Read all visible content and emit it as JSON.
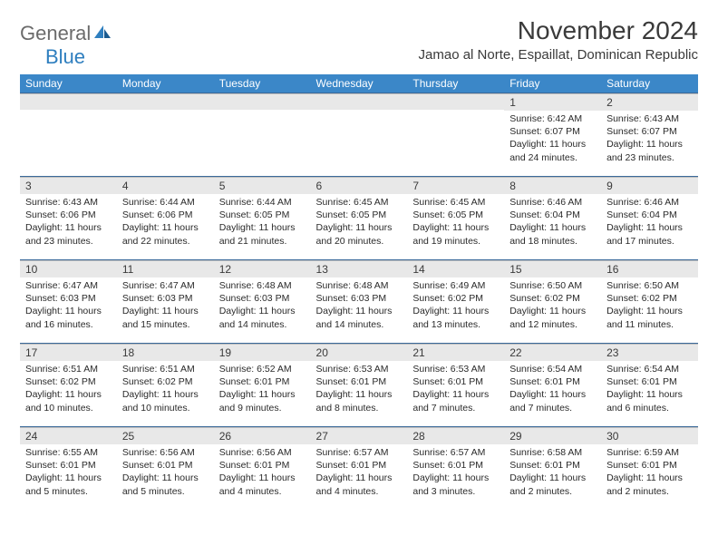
{
  "logo": {
    "text_general": "General",
    "text_blue": "Blue"
  },
  "header": {
    "month_title": "November 2024",
    "location": "Jamao al Norte, Espaillat, Dominican Republic"
  },
  "colors": {
    "header_bg": "#3b87c8",
    "header_text": "#ffffff",
    "day_number_bg": "#e8e8e8",
    "border": "#3b6a9a",
    "logo_gray": "#6b6b6b",
    "logo_blue": "#2f7fbf"
  },
  "day_names": [
    "Sunday",
    "Monday",
    "Tuesday",
    "Wednesday",
    "Thursday",
    "Friday",
    "Saturday"
  ],
  "weeks": [
    [
      {
        "day": "",
        "sunrise": "",
        "sunset": "",
        "daylight": ""
      },
      {
        "day": "",
        "sunrise": "",
        "sunset": "",
        "daylight": ""
      },
      {
        "day": "",
        "sunrise": "",
        "sunset": "",
        "daylight": ""
      },
      {
        "day": "",
        "sunrise": "",
        "sunset": "",
        "daylight": ""
      },
      {
        "day": "",
        "sunrise": "",
        "sunset": "",
        "daylight": ""
      },
      {
        "day": "1",
        "sunrise": "Sunrise: 6:42 AM",
        "sunset": "Sunset: 6:07 PM",
        "daylight": "Daylight: 11 hours and 24 minutes."
      },
      {
        "day": "2",
        "sunrise": "Sunrise: 6:43 AM",
        "sunset": "Sunset: 6:07 PM",
        "daylight": "Daylight: 11 hours and 23 minutes."
      }
    ],
    [
      {
        "day": "3",
        "sunrise": "Sunrise: 6:43 AM",
        "sunset": "Sunset: 6:06 PM",
        "daylight": "Daylight: 11 hours and 23 minutes."
      },
      {
        "day": "4",
        "sunrise": "Sunrise: 6:44 AM",
        "sunset": "Sunset: 6:06 PM",
        "daylight": "Daylight: 11 hours and 22 minutes."
      },
      {
        "day": "5",
        "sunrise": "Sunrise: 6:44 AM",
        "sunset": "Sunset: 6:05 PM",
        "daylight": "Daylight: 11 hours and 21 minutes."
      },
      {
        "day": "6",
        "sunrise": "Sunrise: 6:45 AM",
        "sunset": "Sunset: 6:05 PM",
        "daylight": "Daylight: 11 hours and 20 minutes."
      },
      {
        "day": "7",
        "sunrise": "Sunrise: 6:45 AM",
        "sunset": "Sunset: 6:05 PM",
        "daylight": "Daylight: 11 hours and 19 minutes."
      },
      {
        "day": "8",
        "sunrise": "Sunrise: 6:46 AM",
        "sunset": "Sunset: 6:04 PM",
        "daylight": "Daylight: 11 hours and 18 minutes."
      },
      {
        "day": "9",
        "sunrise": "Sunrise: 6:46 AM",
        "sunset": "Sunset: 6:04 PM",
        "daylight": "Daylight: 11 hours and 17 minutes."
      }
    ],
    [
      {
        "day": "10",
        "sunrise": "Sunrise: 6:47 AM",
        "sunset": "Sunset: 6:03 PM",
        "daylight": "Daylight: 11 hours and 16 minutes."
      },
      {
        "day": "11",
        "sunrise": "Sunrise: 6:47 AM",
        "sunset": "Sunset: 6:03 PM",
        "daylight": "Daylight: 11 hours and 15 minutes."
      },
      {
        "day": "12",
        "sunrise": "Sunrise: 6:48 AM",
        "sunset": "Sunset: 6:03 PM",
        "daylight": "Daylight: 11 hours and 14 minutes."
      },
      {
        "day": "13",
        "sunrise": "Sunrise: 6:48 AM",
        "sunset": "Sunset: 6:03 PM",
        "daylight": "Daylight: 11 hours and 14 minutes."
      },
      {
        "day": "14",
        "sunrise": "Sunrise: 6:49 AM",
        "sunset": "Sunset: 6:02 PM",
        "daylight": "Daylight: 11 hours and 13 minutes."
      },
      {
        "day": "15",
        "sunrise": "Sunrise: 6:50 AM",
        "sunset": "Sunset: 6:02 PM",
        "daylight": "Daylight: 11 hours and 12 minutes."
      },
      {
        "day": "16",
        "sunrise": "Sunrise: 6:50 AM",
        "sunset": "Sunset: 6:02 PM",
        "daylight": "Daylight: 11 hours and 11 minutes."
      }
    ],
    [
      {
        "day": "17",
        "sunrise": "Sunrise: 6:51 AM",
        "sunset": "Sunset: 6:02 PM",
        "daylight": "Daylight: 11 hours and 10 minutes."
      },
      {
        "day": "18",
        "sunrise": "Sunrise: 6:51 AM",
        "sunset": "Sunset: 6:02 PM",
        "daylight": "Daylight: 11 hours and 10 minutes."
      },
      {
        "day": "19",
        "sunrise": "Sunrise: 6:52 AM",
        "sunset": "Sunset: 6:01 PM",
        "daylight": "Daylight: 11 hours and 9 minutes."
      },
      {
        "day": "20",
        "sunrise": "Sunrise: 6:53 AM",
        "sunset": "Sunset: 6:01 PM",
        "daylight": "Daylight: 11 hours and 8 minutes."
      },
      {
        "day": "21",
        "sunrise": "Sunrise: 6:53 AM",
        "sunset": "Sunset: 6:01 PM",
        "daylight": "Daylight: 11 hours and 7 minutes."
      },
      {
        "day": "22",
        "sunrise": "Sunrise: 6:54 AM",
        "sunset": "Sunset: 6:01 PM",
        "daylight": "Daylight: 11 hours and 7 minutes."
      },
      {
        "day": "23",
        "sunrise": "Sunrise: 6:54 AM",
        "sunset": "Sunset: 6:01 PM",
        "daylight": "Daylight: 11 hours and 6 minutes."
      }
    ],
    [
      {
        "day": "24",
        "sunrise": "Sunrise: 6:55 AM",
        "sunset": "Sunset: 6:01 PM",
        "daylight": "Daylight: 11 hours and 5 minutes."
      },
      {
        "day": "25",
        "sunrise": "Sunrise: 6:56 AM",
        "sunset": "Sunset: 6:01 PM",
        "daylight": "Daylight: 11 hours and 5 minutes."
      },
      {
        "day": "26",
        "sunrise": "Sunrise: 6:56 AM",
        "sunset": "Sunset: 6:01 PM",
        "daylight": "Daylight: 11 hours and 4 minutes."
      },
      {
        "day": "27",
        "sunrise": "Sunrise: 6:57 AM",
        "sunset": "Sunset: 6:01 PM",
        "daylight": "Daylight: 11 hours and 4 minutes."
      },
      {
        "day": "28",
        "sunrise": "Sunrise: 6:57 AM",
        "sunset": "Sunset: 6:01 PM",
        "daylight": "Daylight: 11 hours and 3 minutes."
      },
      {
        "day": "29",
        "sunrise": "Sunrise: 6:58 AM",
        "sunset": "Sunset: 6:01 PM",
        "daylight": "Daylight: 11 hours and 2 minutes."
      },
      {
        "day": "30",
        "sunrise": "Sunrise: 6:59 AM",
        "sunset": "Sunset: 6:01 PM",
        "daylight": "Daylight: 11 hours and 2 minutes."
      }
    ]
  ]
}
